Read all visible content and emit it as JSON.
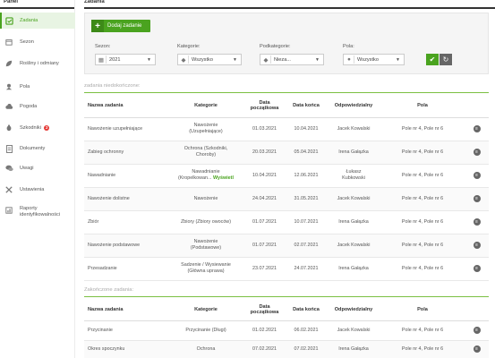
{
  "sidebar": {
    "header": "Panel",
    "items": [
      {
        "label": "Zadania",
        "icon": "tasks-icon",
        "active": true
      },
      {
        "label": "Sezon",
        "icon": "calendar-icon"
      },
      {
        "label": "Rośliny i odmiany",
        "icon": "leaf-icon"
      },
      {
        "label": "Pola",
        "icon": "field-icon"
      },
      {
        "label": "Pogoda",
        "icon": "cloud-icon"
      },
      {
        "label": "Szkodniki",
        "icon": "bug-icon",
        "badge": "2"
      },
      {
        "label": "Dokumenty",
        "icon": "document-icon"
      },
      {
        "label": "Uwagi",
        "icon": "comments-icon"
      },
      {
        "label": "Ustawienia",
        "icon": "tools-icon"
      },
      {
        "label": "Raporty identyfikowalności",
        "icon": "report-icon"
      }
    ]
  },
  "main": {
    "header": "Zadania",
    "add_button": "Dodaj zadanie",
    "filters": {
      "season": {
        "label": "Sezon:",
        "value": "2021"
      },
      "category": {
        "label": "Kategorie:",
        "value": "Wszystko"
      },
      "subcategory": {
        "label": "Podkategorie:",
        "value": "Nieza..."
      },
      "field": {
        "label": "Pola:",
        "value": "Wszystko"
      }
    },
    "unfinished_title": "zadania niedokończone:",
    "finished_title": "Zakończone zadania:",
    "columns": [
      "Nazwa zadania",
      "Kategorie",
      "Data początkowa",
      "Data końca",
      "Odpowiedzialny",
      "Pola"
    ],
    "unfinished": [
      {
        "name": "Nawożenie uzupełniające",
        "cat1": "Nawożenie",
        "cat2": "(Uzupełniające)",
        "start": "01.03.2021",
        "end": "10.04.2021",
        "person": "Jacek Kowalski",
        "fields": "Pole nr 4, Pole nr 6"
      },
      {
        "name": "Zabieg ochronny",
        "cat1": "Ochrona (Szkodniki,",
        "cat2": "Choroby)",
        "start": "20.03.2021",
        "end": "05.04.2021",
        "person": "Irena Gałązka",
        "fields": "Pole nr 4, Pole nr 6"
      },
      {
        "name": "Nawadnianie",
        "cat1": "Nawadnianie",
        "cat2": "(Kropelkowan...",
        "link": "Wyświetl",
        "start": "10.04.2021",
        "end": "12.06.2021",
        "person": "Łukasz Kubkowski",
        "fields": "Pole nr 4, Pole nr 6"
      },
      {
        "name": "Nawożenie dolistne",
        "cat1": "Nawożenie",
        "cat2": "",
        "start": "24.04.2021",
        "end": "31.05.2021",
        "person": "Jacek Kowalski",
        "fields": "Pole nr 4, Pole nr 6"
      },
      {
        "name": "Zbiór",
        "cat1": "Zbiory (Zbiory owoców)",
        "cat2": "",
        "start": "01.07.2021",
        "end": "10.07.2021",
        "person": "Irena Gałązka",
        "fields": "Pole nr 4, Pole nr 6"
      },
      {
        "name": "Nawożenie podstawowe",
        "cat1": "Nawożenie",
        "cat2": "(Podstawowe)",
        "start": "01.07.2021",
        "end": "02.07.2021",
        "person": "Jacek Kowalski",
        "fields": "Pole nr 4, Pole nr 6"
      },
      {
        "name": "Przesadzanie",
        "cat1": "Sadzenie / Wysiewanie",
        "cat2": "(Główna uprawa)",
        "start": "23.07.2021",
        "end": "24.07.2021",
        "person": "Irena Gałązka",
        "fields": "Pole nr 4, Pole nr 6"
      }
    ],
    "finished": [
      {
        "name": "Przycinanie",
        "cat1": "Przycinanie (Długi)",
        "cat2": "",
        "start": "01.02.2021",
        "end": "06.02.2021",
        "person": "Jacek Kowalski",
        "fields": "Pole nr 4, Pole nr 6"
      },
      {
        "name": "Okres spoczynku",
        "cat1": "Ochrona",
        "cat2": "",
        "start": "07.02.2021",
        "end": "07.02.2021",
        "person": "Irena Gałązka",
        "fields": "Pole nr 4, Pole nr 6"
      }
    ]
  },
  "colors": {
    "accent": "#4aa31f",
    "link": "#4ba3d6",
    "badge": "#e53935"
  }
}
